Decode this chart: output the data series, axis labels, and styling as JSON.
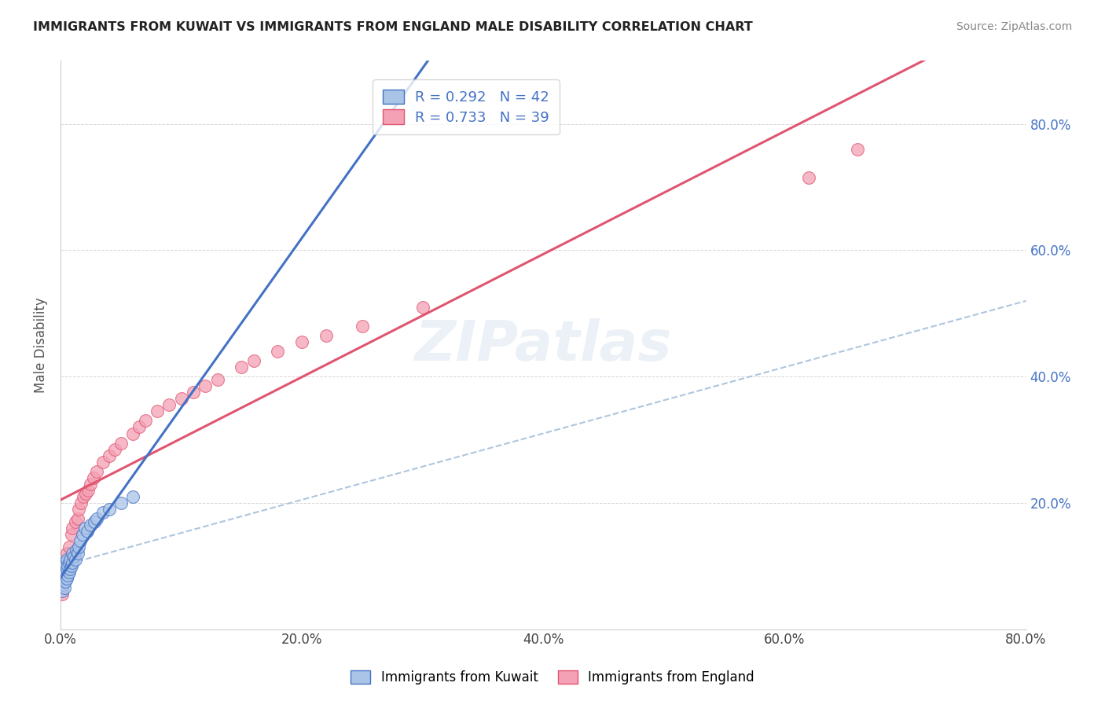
{
  "title": "IMMIGRANTS FROM KUWAIT VS IMMIGRANTS FROM ENGLAND MALE DISABILITY CORRELATION CHART",
  "source": "Source: ZipAtlas.com",
  "ylabel": "Male Disability",
  "legend_label_1": "Immigrants from Kuwait",
  "legend_label_2": "Immigrants from England",
  "R1": 0.292,
  "N1": 42,
  "R2": 0.733,
  "N2": 39,
  "color_kuwait": "#aac4e8",
  "color_england": "#f4a0b5",
  "line_color_kuwait": "#4472c4",
  "line_color_england": "#e05570",
  "dash_line_color": "#99b8d8",
  "background_color": "#ffffff",
  "grid_color": "#bbbbbb",
  "watermark": "ZIPatlas",
  "xlim": [
    0.0,
    0.8
  ],
  "ylim": [
    0.0,
    0.9
  ],
  "xtick_labels": [
    "0.0%",
    "20.0%",
    "40.0%",
    "60.0%",
    "80.0%"
  ],
  "xtick_vals": [
    0.0,
    0.2,
    0.4,
    0.6,
    0.8
  ],
  "ytick_labels": [
    "20.0%",
    "40.0%",
    "60.0%",
    "80.0%"
  ],
  "ytick_vals": [
    0.2,
    0.4,
    0.6,
    0.8
  ],
  "kuwait_x": [
    0.001,
    0.001,
    0.001,
    0.002,
    0.002,
    0.002,
    0.002,
    0.003,
    0.003,
    0.003,
    0.003,
    0.004,
    0.004,
    0.004,
    0.005,
    0.005,
    0.005,
    0.006,
    0.006,
    0.007,
    0.007,
    0.008,
    0.008,
    0.009,
    0.01,
    0.01,
    0.011,
    0.012,
    0.013,
    0.014,
    0.015,
    0.016,
    0.018,
    0.02,
    0.022,
    0.025,
    0.028,
    0.03,
    0.035,
    0.04,
    0.05,
    0.06
  ],
  "kuwait_y": [
    0.06,
    0.075,
    0.085,
    0.07,
    0.08,
    0.09,
    0.1,
    0.065,
    0.08,
    0.095,
    0.105,
    0.075,
    0.09,
    0.1,
    0.08,
    0.095,
    0.11,
    0.085,
    0.1,
    0.09,
    0.105,
    0.095,
    0.11,
    0.1,
    0.105,
    0.12,
    0.115,
    0.11,
    0.125,
    0.12,
    0.13,
    0.14,
    0.15,
    0.16,
    0.155,
    0.165,
    0.17,
    0.175,
    0.185,
    0.19,
    0.2,
    0.21
  ],
  "england_x": [
    0.001,
    0.002,
    0.004,
    0.005,
    0.007,
    0.009,
    0.01,
    0.012,
    0.014,
    0.015,
    0.017,
    0.019,
    0.021,
    0.023,
    0.025,
    0.027,
    0.03,
    0.035,
    0.04,
    0.045,
    0.05,
    0.06,
    0.065,
    0.07,
    0.08,
    0.09,
    0.1,
    0.11,
    0.12,
    0.13,
    0.15,
    0.16,
    0.18,
    0.2,
    0.22,
    0.25,
    0.3,
    0.62,
    0.66
  ],
  "england_y": [
    0.055,
    0.08,
    0.095,
    0.12,
    0.13,
    0.15,
    0.16,
    0.17,
    0.175,
    0.19,
    0.2,
    0.21,
    0.215,
    0.22,
    0.23,
    0.24,
    0.25,
    0.265,
    0.275,
    0.285,
    0.295,
    0.31,
    0.32,
    0.33,
    0.345,
    0.355,
    0.365,
    0.375,
    0.385,
    0.395,
    0.415,
    0.425,
    0.44,
    0.455,
    0.465,
    0.48,
    0.51,
    0.715,
    0.76
  ]
}
